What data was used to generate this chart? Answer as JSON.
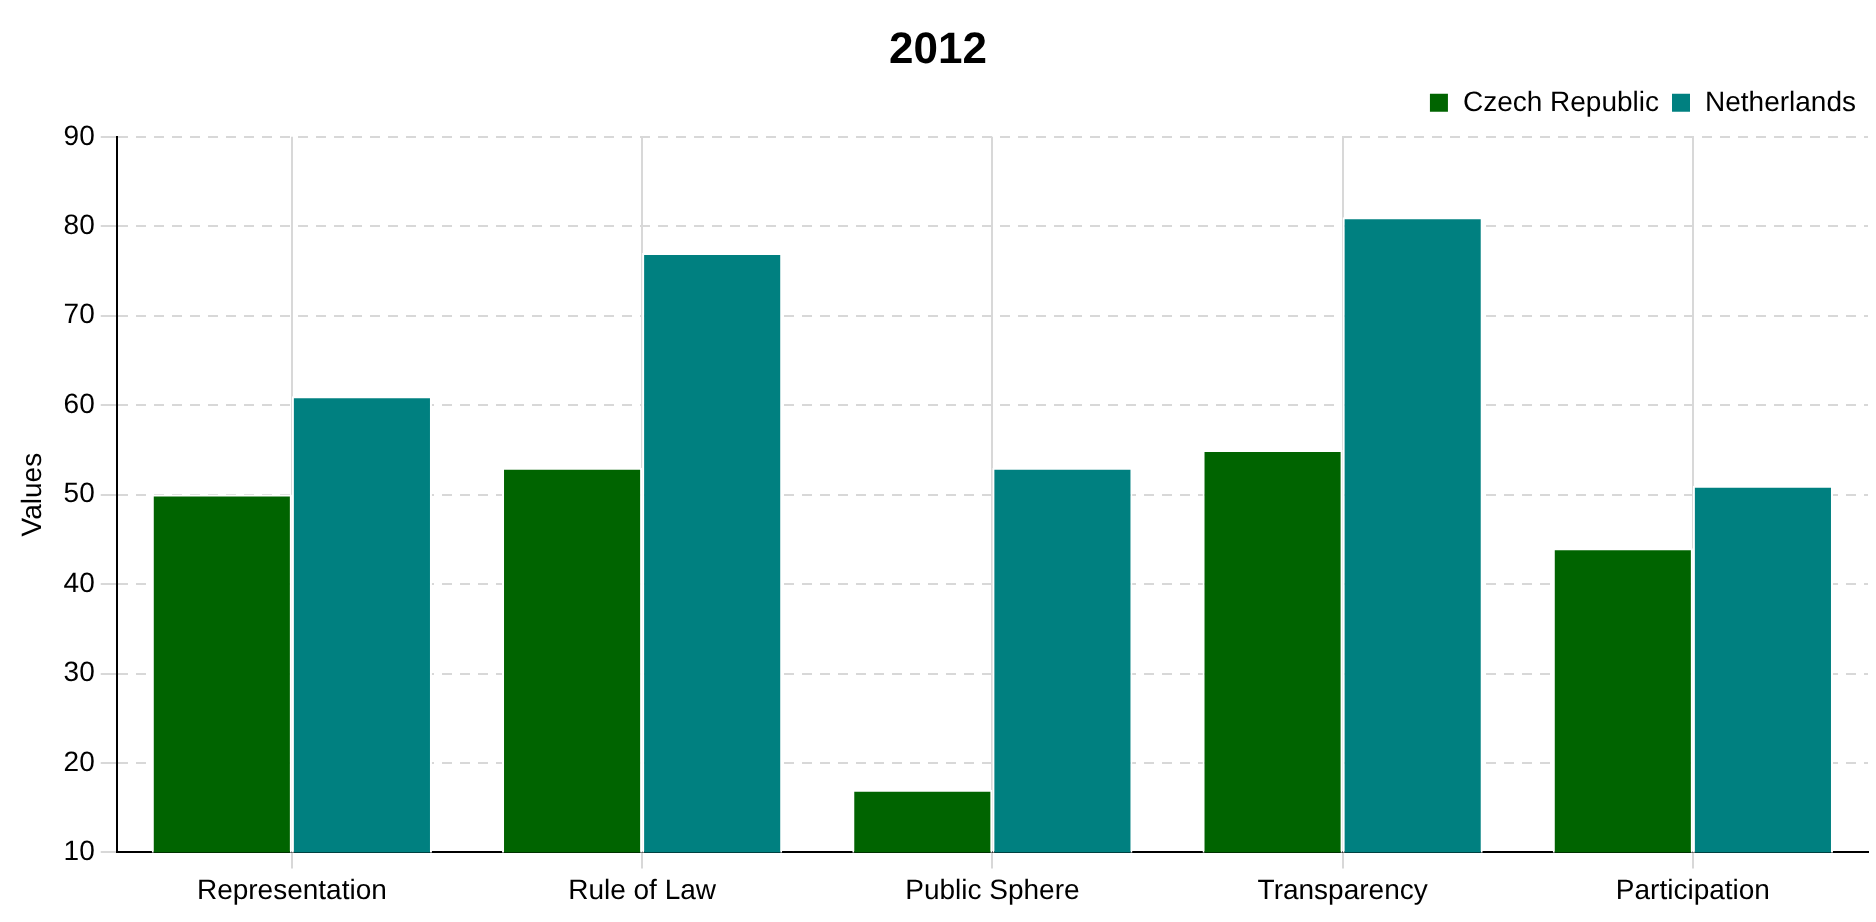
{
  "chart_data": {
    "type": "bar",
    "title": "2012",
    "ylabel": "Values",
    "categories": [
      "Representation",
      "Rule of Law",
      "Public Sphere",
      "Transparency",
      "Participation"
    ],
    "series": [
      {
        "name": "Czech Republic",
        "color": "#006400",
        "values": [
          50,
          53,
          17,
          55,
          44
        ]
      },
      {
        "name": "Netherlands",
        "color": "#008080",
        "values": [
          61,
          77,
          53,
          81,
          51
        ]
      }
    ],
    "ylim": [
      10,
      90
    ],
    "yticks": [
      10,
      20,
      30,
      40,
      50,
      60,
      70,
      80,
      90
    ],
    "grid": true,
    "legend": "top right"
  }
}
